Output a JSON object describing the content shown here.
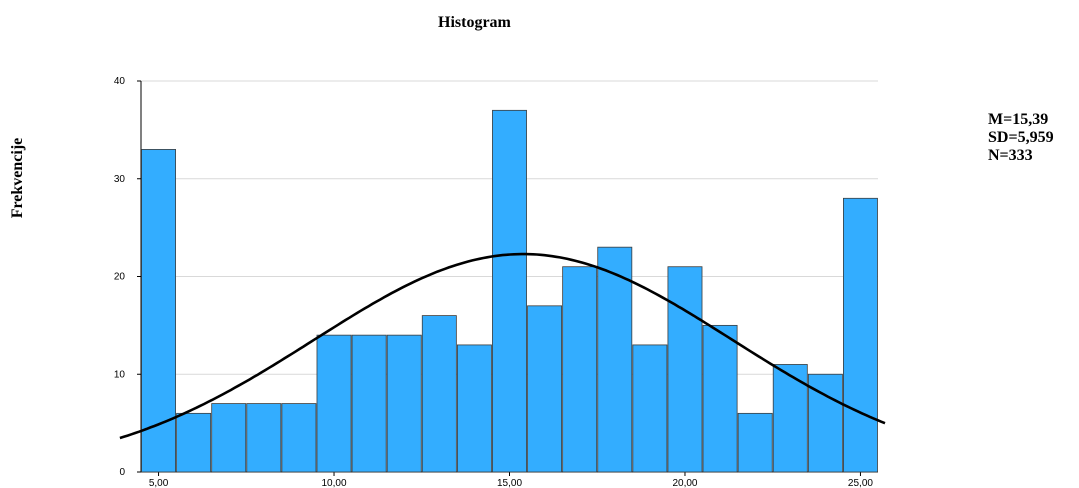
{
  "chart_data": {
    "type": "bar",
    "title": "Histogram",
    "xlabel": "",
    "ylabel": "Frekvencije",
    "bins": [
      {
        "x": 5,
        "value": 33
      },
      {
        "x": 6,
        "value": 6
      },
      {
        "x": 7,
        "value": 7
      },
      {
        "x": 8,
        "value": 7
      },
      {
        "x": 9,
        "value": 7
      },
      {
        "x": 10,
        "value": 14
      },
      {
        "x": 11,
        "value": 14
      },
      {
        "x": 12,
        "value": 14
      },
      {
        "x": 13,
        "value": 16
      },
      {
        "x": 14,
        "value": 13
      },
      {
        "x": 15,
        "value": 37
      },
      {
        "x": 16,
        "value": 17
      },
      {
        "x": 17,
        "value": 21
      },
      {
        "x": 18,
        "value": 23
      },
      {
        "x": 19,
        "value": 13
      },
      {
        "x": 20,
        "value": 21
      },
      {
        "x": 21,
        "value": 15
      },
      {
        "x": 22,
        "value": 6
      },
      {
        "x": 23,
        "value": 11
      },
      {
        "x": 24,
        "value": 10
      },
      {
        "x": 25,
        "value": 28
      }
    ],
    "xlim": [
      4.5,
      25.5
    ],
    "ylim": [
      0,
      40
    ],
    "x_ticks": [
      {
        "value": 5,
        "label": "5,00"
      },
      {
        "value": 10,
        "label": "10,00"
      },
      {
        "value": 15,
        "label": "15,00"
      },
      {
        "value": 20,
        "label": "20,00"
      },
      {
        "value": 25,
        "label": "25,00"
      }
    ],
    "y_ticks": [
      {
        "value": 0,
        "label": "0"
      },
      {
        "value": 10,
        "label": "10"
      },
      {
        "value": 20,
        "label": "20"
      },
      {
        "value": 30,
        "label": "30"
      },
      {
        "value": 40,
        "label": "40"
      }
    ],
    "normal_curve": {
      "mean": 15.39,
      "sd": 5.959,
      "n": 333,
      "bin_width": 1
    },
    "grid": true,
    "colors": {
      "bar": "#33adff",
      "bar_edge": "#3b3b3b",
      "curve": "#000000",
      "grid": "#d9d9d9"
    }
  },
  "stats": {
    "mean": "M=15,39",
    "sd": "SD=5,959",
    "n": "N=333"
  }
}
